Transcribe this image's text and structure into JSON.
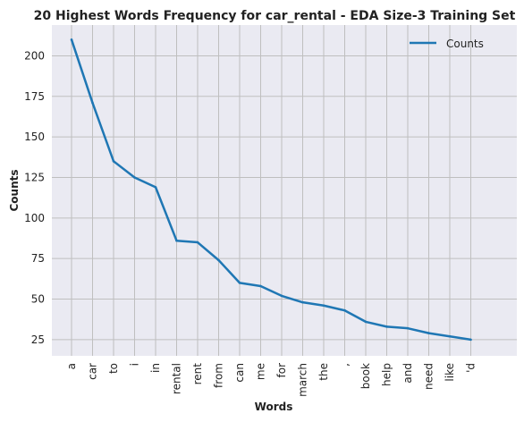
{
  "chart_data": {
    "type": "line",
    "title": "20 Highest Words Frequency for car_rental - EDA Size-3 Training Set",
    "xlabel": "Words",
    "ylabel": "Counts",
    "categories": [
      "a",
      "car",
      "to",
      "i",
      "in",
      "rental",
      "rent",
      "from",
      "can",
      "me",
      "for",
      "march",
      "the",
      ",",
      "book",
      "help",
      "and",
      "need",
      "like",
      "'d"
    ],
    "series": [
      {
        "name": "Counts",
        "values": [
          210,
          171,
          135,
          125,
          119,
          86,
          85,
          74,
          60,
          58,
          52,
          48,
          46,
          43,
          36,
          33,
          32,
          29,
          27,
          25
        ],
        "color": "#1f77b4"
      }
    ],
    "yticks": [
      25,
      50,
      75,
      100,
      125,
      150,
      175,
      200
    ],
    "ylim": [
      15,
      219
    ],
    "grid": true,
    "legend_position": "top-right",
    "background_color": "#eaeaf2",
    "grid_color": "#bfbfbf"
  }
}
